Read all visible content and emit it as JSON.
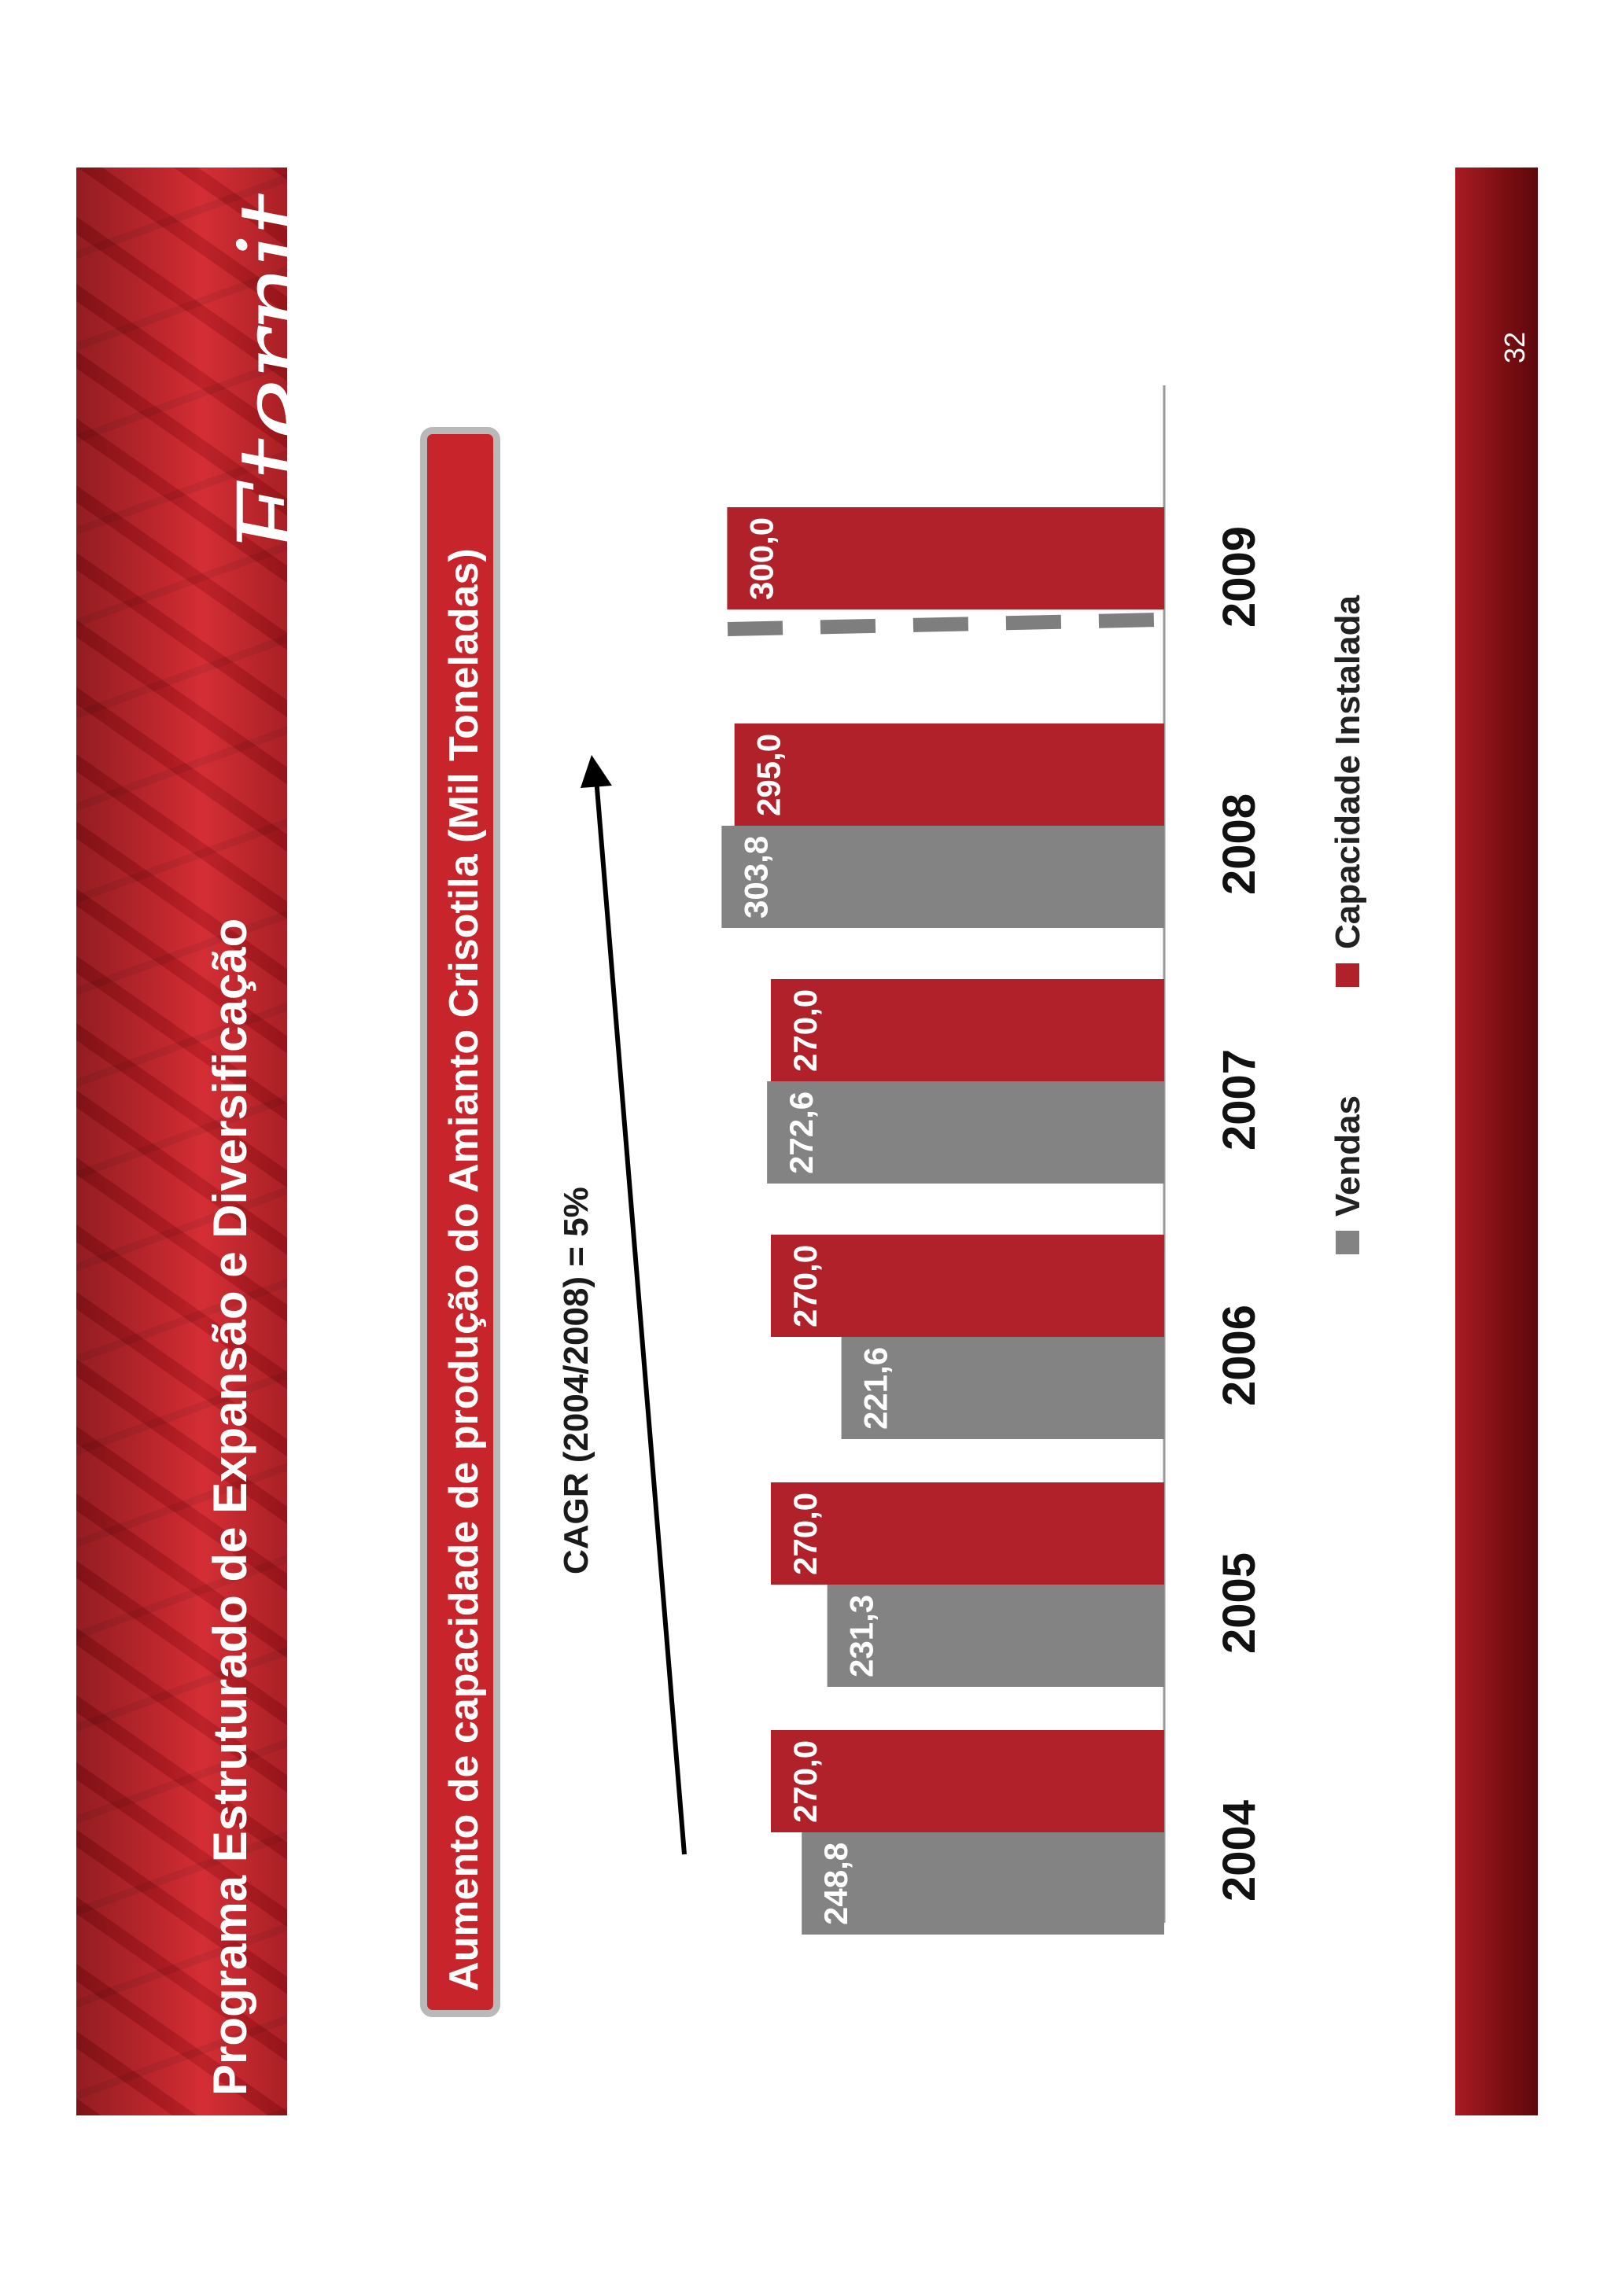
{
  "header": {
    "title": "Programa Estruturado de Expansão e Diversificação",
    "logo": "Eternit"
  },
  "footer": {
    "page_number": "32"
  },
  "subtitle": "Aumento de capacidade de produção do Amianto Crisotila (Mil Toneladas)",
  "annotation": "CAGR (2004/2008) = 5%",
  "colors": {
    "vendas": "#838383",
    "capacidade": "#b0212a",
    "brand": "#c8242b"
  },
  "chart_data": {
    "type": "bar",
    "orientation": "rotated-90-ccw",
    "categories": [
      "2004",
      "2005",
      "2006",
      "2007",
      "2008",
      "2009"
    ],
    "series": [
      {
        "name": "Vendas",
        "values": [
          248.8,
          231.3,
          221.6,
          272.6,
          303.8,
          null
        ],
        "labels": [
          "248,8",
          "231,3",
          "221,6",
          "272,6",
          "303,8",
          ""
        ]
      },
      {
        "name": "Capacidade Instalada",
        "values": [
          270.0,
          270.0,
          270.0,
          270.0,
          295.0,
          300.0
        ],
        "labels": [
          "270,0",
          "270,0",
          "270,0",
          "270,0",
          "295,0",
          "300,0"
        ]
      }
    ],
    "ylim": [
      0,
      320
    ],
    "legend": [
      "Vendas",
      "Capacidade Instalada"
    ],
    "legend_placement": "bottom",
    "grid": false
  }
}
